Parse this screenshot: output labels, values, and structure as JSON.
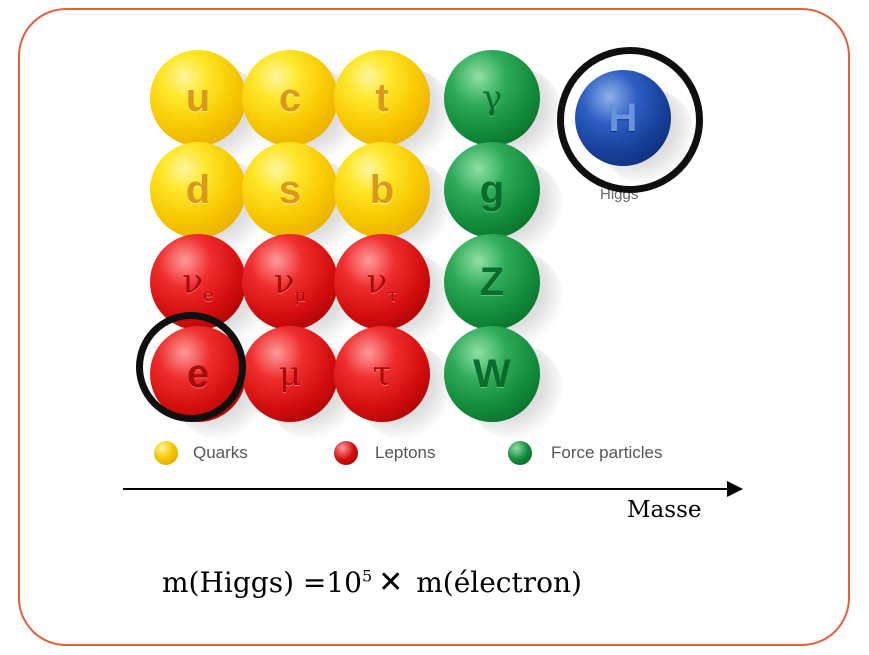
{
  "frame": {
    "border_color": "#e0623c"
  },
  "particles": {
    "u": "u",
    "c": "c",
    "t": "t",
    "gamma": "γ",
    "d": "d",
    "s": "s",
    "b": "b",
    "g": "g",
    "nu_e": "ν",
    "nu_e_sub": "e",
    "nu_mu": "ν",
    "nu_mu_sub": "μ",
    "nu_tau": "ν",
    "nu_tau_sub": "τ",
    "Z": "Z",
    "e": "e",
    "mu": "μ",
    "tau": "τ",
    "W": "W",
    "H": "H"
  },
  "higgs_label": "Higgs",
  "legend": {
    "quarks": "Quarks",
    "leptons": "Leptons",
    "force": "Force particles"
  },
  "colors": {
    "quarks": "#f7c800",
    "leptons": "#d30d0d",
    "force": "#118a3a",
    "higgs": "#163f97",
    "highlight_ring": "#0f0f0f"
  },
  "axis": {
    "label": "Masse"
  },
  "formula": {
    "left": "m(Higgs) =10",
    "exp": "5",
    "times": "✕",
    "right": "m(électron)"
  }
}
